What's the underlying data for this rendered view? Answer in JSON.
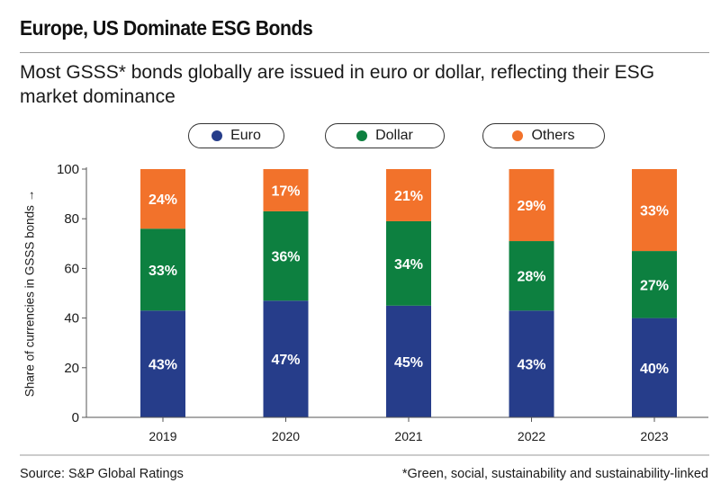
{
  "header": {
    "title": "Europe, US Dominate ESG Bonds",
    "subtitle": "Most GSSS* bonds globally are issued in euro or dollar, reflecting their ESG market dominance"
  },
  "footer": {
    "source": "Source: S&P Global Ratings",
    "note": "*Green, social, sustainability and sustainability-linked"
  },
  "chart_data": {
    "type": "bar",
    "stacked": true,
    "title": "Europe, US Dominate ESG Bonds",
    "ylabel": "Share of currencies in GSSS bonds →",
    "xlabel": "",
    "ylim": [
      0,
      100
    ],
    "yticks": [
      0,
      20,
      40,
      60,
      80,
      100
    ],
    "categories": [
      "2019",
      "2020",
      "2021",
      "2022",
      "2023"
    ],
    "series": [
      {
        "name": "Euro",
        "color": "#263d8a",
        "values": [
          43,
          47,
          45,
          43,
          40
        ],
        "labels": [
          "43%",
          "47%",
          "45%",
          "43%",
          "40%"
        ]
      },
      {
        "name": "Dollar",
        "color": "#0d8040",
        "values": [
          33,
          36,
          34,
          28,
          27
        ],
        "labels": [
          "33%",
          "36%",
          "34%",
          "28%",
          "27%"
        ]
      },
      {
        "name": "Others",
        "color": "#f2722b",
        "values": [
          24,
          17,
          21,
          29,
          33
        ],
        "labels": [
          "24%",
          "17%",
          "21%",
          "29%",
          "33%"
        ]
      }
    ],
    "legend_position": "top"
  }
}
